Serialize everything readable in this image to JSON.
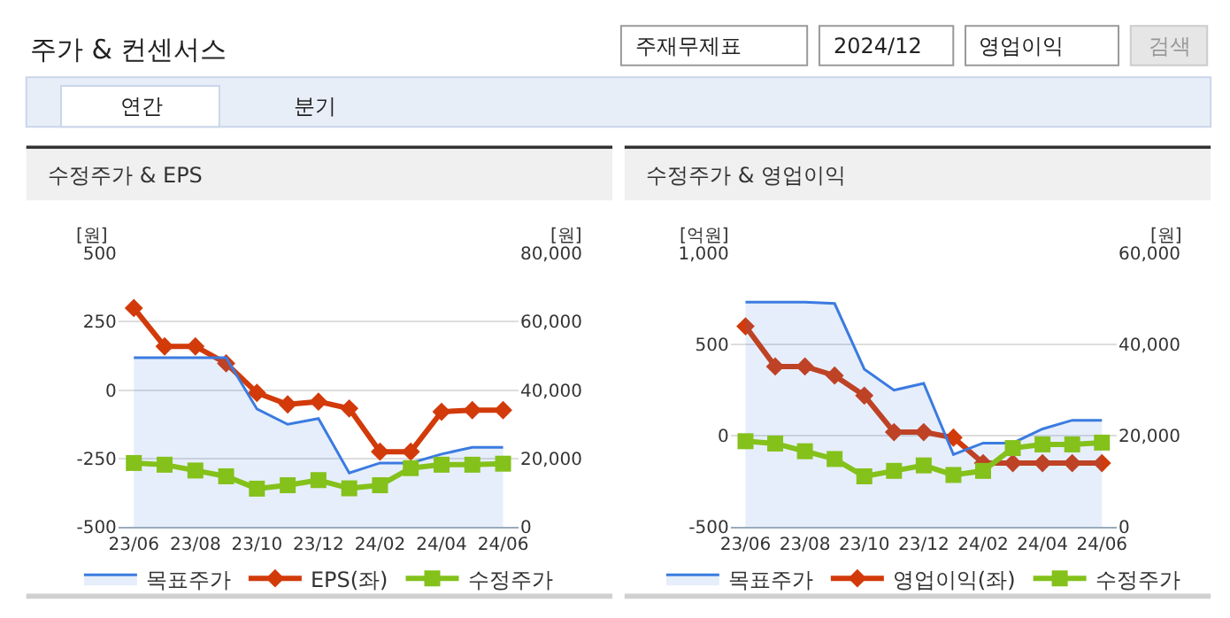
{
  "chart_data": [
    {
      "type": "other",
      "title": "주가 & 컨센서스",
      "annotations": [
        "주재무제표",
        "2024/12",
        "영업이익",
        "검색",
        "연간",
        "분기"
      ]
    },
    {
      "type": "line",
      "title": "수정주가 & EPS",
      "ylabel": "[원]",
      "y2label": "[원]",
      "categories": [
        "23/06",
        null,
        "23/08",
        null,
        "23/10",
        null,
        "23/12",
        null,
        "24/02",
        null,
        "24/04",
        null,
        "24/06"
      ],
      "ylim": [
        -500,
        500
      ],
      "yticks": [
        -500,
        -250,
        0,
        250,
        500
      ],
      "y2lim": [
        0,
        80000
      ],
      "y2ticks": [
        0,
        {
          "value": 20000,
          "label": "20,000"
        },
        {
          "value": 40000,
          "label": "40,000"
        },
        {
          "value": 60000,
          "label": "60,000"
        },
        {
          "value": 80000,
          "label": "80,000"
        }
      ],
      "grid": "y",
      "legend": "bottom",
      "series": [
        {
          "name": "목표주가",
          "type": "area",
          "axis": "y2",
          "color": "#3b7be0",
          "marker": "none",
          "values": [
            49500,
            49500,
            49500,
            49500,
            34500,
            30000,
            31700,
            15800,
            18700,
            18700,
            21300,
            23300,
            23300
          ]
        },
        {
          "name": "EPS(좌)",
          "type": "line",
          "color": "#d23a0a",
          "marker": "diamond",
          "values": [
            300,
            160,
            160,
            98,
            -10,
            -52,
            -42,
            -67,
            -225,
            -225,
            -79,
            -73,
            -73
          ]
        },
        {
          "name": "수정주가",
          "type": "line",
          "axis": "y2",
          "color": "#84c11b",
          "marker": "square",
          "values": [
            18700,
            18200,
            16500,
            14800,
            11200,
            12200,
            13700,
            11300,
            12200,
            17200,
            18200,
            18200,
            18500
          ]
        }
      ]
    },
    {
      "type": "line",
      "title": "수정주가 & 영업이익",
      "ylabel": "[억원]",
      "y2label": "[원]",
      "categories": [
        "23/06",
        null,
        "23/08",
        null,
        "23/10",
        null,
        "23/12",
        null,
        "24/02",
        null,
        "24/04",
        null,
        "24/06"
      ],
      "ylim": [
        -500,
        1000
      ],
      "yticks": [
        -500,
        0,
        500,
        {
          "value": 1000,
          "label": "1,000"
        }
      ],
      "y2lim": [
        0,
        60000
      ],
      "y2ticks": [
        0,
        {
          "value": 20000,
          "label": "20,000"
        },
        {
          "value": 40000,
          "label": "40,000"
        },
        {
          "value": 60000,
          "label": "60,000"
        }
      ],
      "grid": "y",
      "legend": "bottom",
      "series": [
        {
          "name": "목표주가",
          "type": "area",
          "axis": "y2",
          "color": "#3b7be0",
          "marker": "none",
          "values": [
            49300,
            49300,
            49300,
            49000,
            34600,
            30000,
            31500,
            15900,
            18400,
            18400,
            21500,
            23400,
            23400
          ]
        },
        {
          "name": "영업이익(좌)",
          "type": "line",
          "color": "#d23a0a",
          "marker": "diamond",
          "values": [
            600,
            380,
            380,
            330,
            220,
            20,
            20,
            -10,
            -150,
            -150,
            -150,
            -150,
            -150
          ]
        },
        {
          "name": "수정주가",
          "type": "line",
          "axis": "y2",
          "color": "#84c11b",
          "marker": "square",
          "values": [
            18800,
            18300,
            16600,
            14900,
            11100,
            12300,
            13500,
            11400,
            12300,
            17300,
            18100,
            18100,
            18500
          ]
        }
      ]
    }
  ]
}
